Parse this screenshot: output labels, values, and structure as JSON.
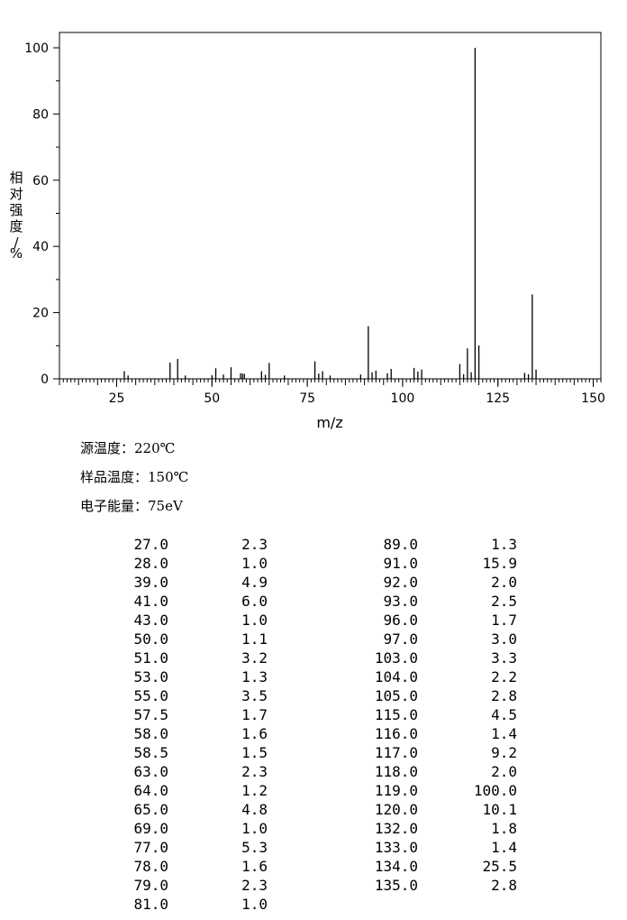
{
  "chart_data": {
    "type": "bar",
    "xlabel": "m/z",
    "ylabel": "相对强度/%",
    "xlim": [
      10,
      152
    ],
    "ylim": [
      0,
      105
    ],
    "x_ticks": [
      25,
      50,
      75,
      100,
      125,
      150
    ],
    "y_ticks": [
      0,
      20,
      40,
      60,
      80,
      100
    ],
    "peaks": [
      {
        "mz": 27.0,
        "intensity": 2.3
      },
      {
        "mz": 28.0,
        "intensity": 1.0
      },
      {
        "mz": 39.0,
        "intensity": 4.9
      },
      {
        "mz": 41.0,
        "intensity": 6.0
      },
      {
        "mz": 43.0,
        "intensity": 1.0
      },
      {
        "mz": 50.0,
        "intensity": 1.1
      },
      {
        "mz": 51.0,
        "intensity": 3.2
      },
      {
        "mz": 53.0,
        "intensity": 1.3
      },
      {
        "mz": 55.0,
        "intensity": 3.5
      },
      {
        "mz": 57.5,
        "intensity": 1.7
      },
      {
        "mz": 58.0,
        "intensity": 1.6
      },
      {
        "mz": 58.5,
        "intensity": 1.5
      },
      {
        "mz": 63.0,
        "intensity": 2.3
      },
      {
        "mz": 64.0,
        "intensity": 1.2
      },
      {
        "mz": 65.0,
        "intensity": 4.8
      },
      {
        "mz": 69.0,
        "intensity": 1.0
      },
      {
        "mz": 77.0,
        "intensity": 5.3
      },
      {
        "mz": 78.0,
        "intensity": 1.6
      },
      {
        "mz": 79.0,
        "intensity": 2.3
      },
      {
        "mz": 81.0,
        "intensity": 1.0
      },
      {
        "mz": 89.0,
        "intensity": 1.3
      },
      {
        "mz": 91.0,
        "intensity": 15.9
      },
      {
        "mz": 92.0,
        "intensity": 2.0
      },
      {
        "mz": 93.0,
        "intensity": 2.5
      },
      {
        "mz": 96.0,
        "intensity": 1.7
      },
      {
        "mz": 97.0,
        "intensity": 3.0
      },
      {
        "mz": 103.0,
        "intensity": 3.3
      },
      {
        "mz": 104.0,
        "intensity": 2.2
      },
      {
        "mz": 105.0,
        "intensity": 2.8
      },
      {
        "mz": 115.0,
        "intensity": 4.5
      },
      {
        "mz": 116.0,
        "intensity": 1.4
      },
      {
        "mz": 117.0,
        "intensity": 9.2
      },
      {
        "mz": 118.0,
        "intensity": 2.0
      },
      {
        "mz": 119.0,
        "intensity": 100.0
      },
      {
        "mz": 120.0,
        "intensity": 10.1
      },
      {
        "mz": 132.0,
        "intensity": 1.8
      },
      {
        "mz": 133.0,
        "intensity": 1.4
      },
      {
        "mz": 134.0,
        "intensity": 25.5
      },
      {
        "mz": 135.0,
        "intensity": 2.8
      }
    ]
  },
  "info": {
    "source_temp_label": "源温度：",
    "source_temp_value": "220℃",
    "sample_temp_label": "样品温度：",
    "sample_temp_value": "150℃",
    "electron_energy_label": "电子能量：",
    "electron_energy_value": "75eV"
  },
  "peak_table": {
    "left": [
      [
        "27.0",
        "2.3"
      ],
      [
        "28.0",
        "1.0"
      ],
      [
        "39.0",
        "4.9"
      ],
      [
        "41.0",
        "6.0"
      ],
      [
        "43.0",
        "1.0"
      ],
      [
        "50.0",
        "1.1"
      ],
      [
        "51.0",
        "3.2"
      ],
      [
        "53.0",
        "1.3"
      ],
      [
        "55.0",
        "3.5"
      ],
      [
        "57.5",
        "1.7"
      ],
      [
        "58.0",
        "1.6"
      ],
      [
        "58.5",
        "1.5"
      ],
      [
        "63.0",
        "2.3"
      ],
      [
        "64.0",
        "1.2"
      ],
      [
        "65.0",
        "4.8"
      ],
      [
        "69.0",
        "1.0"
      ],
      [
        "77.0",
        "5.3"
      ],
      [
        "78.0",
        "1.6"
      ],
      [
        "79.0",
        "2.3"
      ],
      [
        "81.0",
        "1.0"
      ]
    ],
    "right": [
      [
        "89.0",
        "1.3"
      ],
      [
        "91.0",
        "15.9"
      ],
      [
        "92.0",
        "2.0"
      ],
      [
        "93.0",
        "2.5"
      ],
      [
        "96.0",
        "1.7"
      ],
      [
        "97.0",
        "3.0"
      ],
      [
        "103.0",
        "3.3"
      ],
      [
        "104.0",
        "2.2"
      ],
      [
        "105.0",
        "2.8"
      ],
      [
        "115.0",
        "4.5"
      ],
      [
        "116.0",
        "1.4"
      ],
      [
        "117.0",
        "9.2"
      ],
      [
        "118.0",
        "2.0"
      ],
      [
        "119.0",
        "100.0"
      ],
      [
        "120.0",
        "10.1"
      ],
      [
        "132.0",
        "1.8"
      ],
      [
        "133.0",
        "1.4"
      ],
      [
        "134.0",
        "25.5"
      ],
      [
        "135.0",
        "2.8"
      ]
    ]
  }
}
